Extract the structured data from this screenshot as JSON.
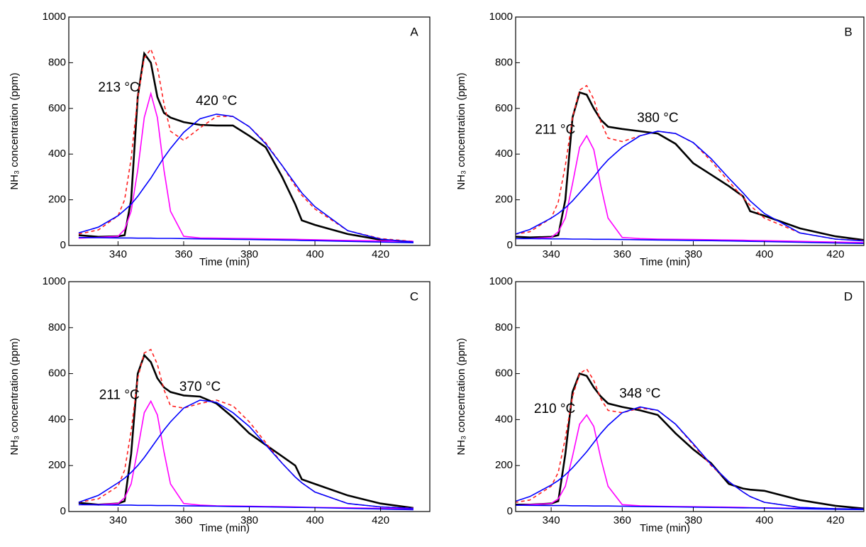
{
  "chart_data": [
    {
      "type": "line",
      "panel": "A",
      "x_label": "Time (min)",
      "y_label": "NH₃ concentration (ppm)",
      "xlim": [
        325,
        435
      ],
      "ylim": [
        0,
        1000
      ],
      "xticks": [
        340,
        360,
        380,
        400,
        420
      ],
      "yticks": [
        0,
        200,
        400,
        600,
        800,
        1000
      ],
      "x": [
        328,
        334,
        340,
        342,
        344,
        346,
        348,
        350,
        352,
        354,
        356,
        360,
        365,
        370,
        375,
        380,
        385,
        390,
        394,
        396,
        400,
        410,
        420,
        430
      ],
      "series": [
        {
          "color": "#000000",
          "values": [
            45,
            38,
            40,
            45,
            200,
            650,
            840,
            800,
            650,
            580,
            560,
            540,
            528,
            525,
            525,
            480,
            430,
            300,
            180,
            110,
            90,
            50,
            25,
            15
          ]
        },
        {
          "color": "#ff2020",
          "dash": true,
          "values": [
            50,
            68,
            130,
            200,
            380,
            650,
            820,
            860,
            780,
            620,
            500,
            460,
            515,
            565,
            565,
            520,
            450,
            350,
            260,
            220,
            160,
            65,
            30,
            18
          ]
        },
        {
          "color": "#ff00ff",
          "label": "213 °C",
          "values": [
            32,
            35,
            40,
            70,
            150,
            330,
            560,
            665,
            560,
            330,
            150,
            40,
            33,
            32,
            31,
            30,
            29,
            28,
            27,
            26,
            25,
            22,
            20,
            18
          ]
        },
        {
          "color": "#0000ff",
          "label": "420 °C",
          "values": [
            55,
            80,
            130,
            155,
            180,
            215,
            255,
            295,
            340,
            385,
            425,
            495,
            555,
            575,
            565,
            520,
            445,
            350,
            270,
            230,
            170,
            65,
            28,
            15
          ]
        },
        {
          "color": "#0000ff",
          "values": [
            35,
            34,
            33,
            33,
            33,
            32,
            32,
            32,
            31,
            31,
            31,
            30,
            29,
            28,
            27,
            26,
            25,
            24,
            23,
            22,
            21,
            18,
            15,
            12
          ]
        }
      ]
    },
    {
      "type": "line",
      "panel": "B",
      "x_label": "Time (min)",
      "y_label": "NH₃ concentration (ppm)",
      "xlim": [
        330,
        428
      ],
      "ylim": [
        0,
        1000
      ],
      "xticks": [
        340,
        360,
        380,
        400,
        420
      ],
      "yticks": [
        0,
        200,
        400,
        600,
        800,
        1000
      ],
      "x": [
        328,
        334,
        340,
        342,
        344,
        346,
        348,
        350,
        352,
        354,
        356,
        360,
        365,
        370,
        375,
        380,
        385,
        390,
        394,
        396,
        400,
        410,
        420,
        430
      ],
      "series": [
        {
          "color": "#000000",
          "values": [
            40,
            35,
            38,
            45,
            200,
            560,
            670,
            660,
            600,
            550,
            520,
            510,
            500,
            490,
            445,
            360,
            310,
            260,
            215,
            150,
            130,
            75,
            40,
            20
          ]
        },
        {
          "color": "#ff2020",
          "dash": true,
          "values": [
            45,
            60,
            120,
            190,
            350,
            560,
            680,
            700,
            640,
            540,
            470,
            455,
            480,
            500,
            490,
            450,
            370,
            280,
            210,
            175,
            120,
            55,
            28,
            20
          ]
        },
        {
          "color": "#ff00ff",
          "label": "211 °C",
          "values": [
            30,
            30,
            35,
            60,
            120,
            270,
            430,
            480,
            420,
            260,
            120,
            35,
            30,
            28,
            27,
            26,
            25,
            24,
            23,
            22,
            21,
            18,
            15,
            12
          ]
        },
        {
          "color": "#0000ff",
          "label": "380 °C",
          "values": [
            40,
            70,
            120,
            140,
            165,
            195,
            230,
            265,
            300,
            340,
            375,
            430,
            480,
            500,
            490,
            450,
            380,
            295,
            230,
            195,
            140,
            55,
            28,
            18
          ]
        },
        {
          "color": "#0000ff",
          "values": [
            30,
            30,
            29,
            29,
            29,
            28,
            28,
            28,
            27,
            27,
            27,
            26,
            25,
            24,
            23,
            22,
            21,
            20,
            19,
            18,
            17,
            14,
            11,
            8
          ]
        }
      ]
    },
    {
      "type": "line",
      "panel": "C",
      "x_label": "Time (min)",
      "y_label": "NH₃ concentration (ppm)",
      "xlim": [
        325,
        435
      ],
      "ylim": [
        0,
        1000
      ],
      "xticks": [
        340,
        360,
        380,
        400,
        420
      ],
      "yticks": [
        0,
        200,
        400,
        600,
        800,
        1000
      ],
      "x": [
        328,
        334,
        340,
        342,
        344,
        346,
        348,
        350,
        352,
        354,
        356,
        360,
        365,
        370,
        375,
        380,
        385,
        390,
        394,
        396,
        400,
        410,
        420,
        430
      ],
      "series": [
        {
          "color": "#000000",
          "values": [
            38,
            30,
            35,
            45,
            250,
            600,
            680,
            650,
            580,
            540,
            520,
            505,
            500,
            470,
            410,
            340,
            290,
            240,
            200,
            140,
            120,
            70,
            35,
            15
          ]
        },
        {
          "color": "#ff2020",
          "dash": true,
          "values": [
            40,
            55,
            110,
            180,
            350,
            580,
            690,
            705,
            640,
            530,
            460,
            450,
            470,
            485,
            460,
            390,
            300,
            210,
            150,
            125,
            85,
            35,
            20,
            15
          ]
        },
        {
          "color": "#ff00ff",
          "label": "211 °C",
          "values": [
            30,
            30,
            35,
            60,
            120,
            270,
            430,
            480,
            420,
            260,
            120,
            35,
            28,
            25,
            24,
            23,
            22,
            21,
            20,
            19,
            18,
            16,
            14,
            12
          ]
        },
        {
          "color": "#0000ff",
          "label": "370 °C",
          "values": [
            40,
            70,
            125,
            145,
            170,
            200,
            235,
            275,
            315,
            355,
            390,
            450,
            485,
            475,
            430,
            370,
            290,
            210,
            150,
            125,
            85,
            35,
            20,
            14
          ]
        },
        {
          "color": "#0000ff",
          "values": [
            30,
            29,
            28,
            28,
            28,
            27,
            27,
            27,
            26,
            26,
            26,
            25,
            24,
            23,
            22,
            21,
            20,
            19,
            18,
            18,
            17,
            14,
            11,
            8
          ]
        }
      ]
    },
    {
      "type": "line",
      "panel": "D",
      "x_label": "Time (min)",
      "y_label": "NH₃ concentration (ppm)",
      "xlim": [
        330,
        428
      ],
      "ylim": [
        0,
        1000
      ],
      "xticks": [
        340,
        360,
        380,
        400,
        420
      ],
      "yticks": [
        0,
        200,
        400,
        600,
        800,
        1000
      ],
      "x": [
        328,
        334,
        340,
        342,
        344,
        346,
        348,
        350,
        352,
        354,
        356,
        360,
        365,
        370,
        375,
        380,
        385,
        390,
        394,
        396,
        400,
        410,
        420,
        430
      ],
      "series": [
        {
          "color": "#000000",
          "values": [
            30,
            30,
            35,
            45,
            250,
            520,
            600,
            590,
            540,
            500,
            470,
            455,
            440,
            420,
            340,
            270,
            210,
            120,
            100,
            95,
            90,
            50,
            25,
            10
          ]
        },
        {
          "color": "#ff2020",
          "dash": true,
          "values": [
            35,
            50,
            110,
            170,
            320,
            500,
            600,
            620,
            570,
            490,
            440,
            430,
            450,
            440,
            380,
            290,
            200,
            130,
            85,
            65,
            40,
            18,
            12,
            10
          ]
        },
        {
          "color": "#ff00ff",
          "label": "210 °C",
          "values": [
            25,
            30,
            35,
            55,
            110,
            240,
            380,
            420,
            370,
            230,
            110,
            30,
            25,
            23,
            22,
            21,
            20,
            19,
            18,
            17,
            16,
            14,
            12,
            10
          ]
        },
        {
          "color": "#0000ff",
          "label": "348 °C",
          "values": [
            35,
            65,
            115,
            135,
            160,
            190,
            225,
            260,
            300,
            340,
            375,
            430,
            455,
            440,
            380,
            295,
            205,
            130,
            85,
            65,
            40,
            18,
            12,
            10
          ]
        },
        {
          "color": "#0000ff",
          "values": [
            28,
            27,
            26,
            26,
            26,
            25,
            25,
            25,
            24,
            24,
            24,
            23,
            22,
            21,
            20,
            19,
            18,
            17,
            16,
            16,
            15,
            12,
            10,
            8
          ]
        }
      ]
    }
  ]
}
